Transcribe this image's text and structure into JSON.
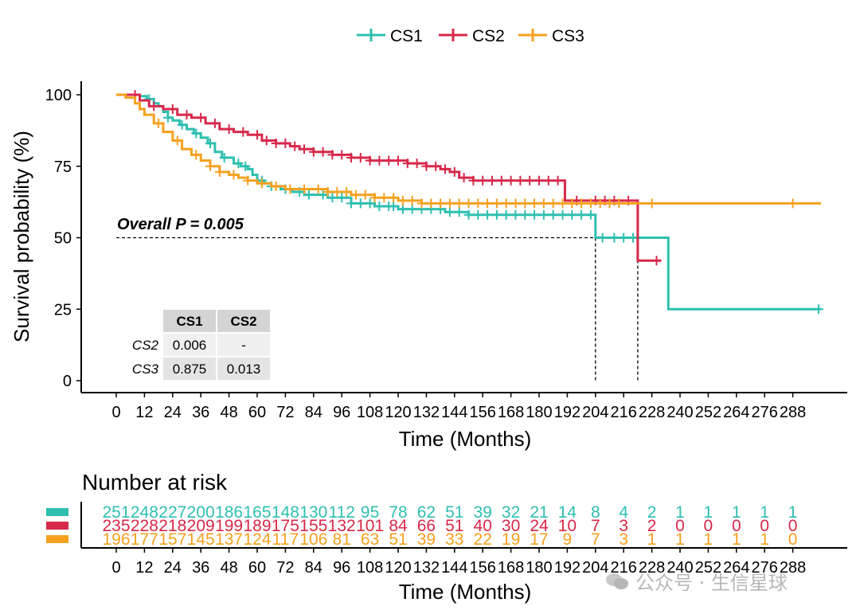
{
  "legend": [
    {
      "label": "CS1",
      "color": "#2EBFB0"
    },
    {
      "label": "CS2",
      "color": "#D6294A"
    },
    {
      "label": "CS3",
      "color": "#F5A11F"
    }
  ],
  "chart_data": {
    "type": "line",
    "subtype": "kaplan-meier",
    "xlabel": "Time (Months)",
    "ylabel": "Survival probability (%)",
    "xlim": [
      0,
      300
    ],
    "ylim": [
      0,
      100
    ],
    "xticks": [
      0,
      12,
      24,
      36,
      48,
      60,
      72,
      84,
      96,
      108,
      120,
      132,
      144,
      156,
      168,
      180,
      192,
      204,
      216,
      228,
      240,
      252,
      264,
      276,
      288
    ],
    "yticks": [
      0,
      25,
      50,
      75,
      100
    ],
    "legend_position": "top",
    "annotation": "Overall P = 0.005",
    "median_survival": [
      204,
      222
    ],
    "series": [
      {
        "name": "CS1",
        "color": "#2EBFB0",
        "points": [
          [
            0,
            100
          ],
          [
            6,
            100
          ],
          [
            10,
            99.5
          ],
          [
            13,
            98.5
          ],
          [
            16,
            97
          ],
          [
            18,
            96
          ],
          [
            20,
            94
          ],
          [
            22,
            92
          ],
          [
            24,
            91
          ],
          [
            27,
            89.5
          ],
          [
            30,
            88
          ],
          [
            33,
            86.5
          ],
          [
            36,
            85
          ],
          [
            39,
            83
          ],
          [
            42,
            80
          ],
          [
            45,
            78
          ],
          [
            50,
            76
          ],
          [
            53,
            75
          ],
          [
            56,
            74
          ],
          [
            58,
            72
          ],
          [
            60,
            70
          ],
          [
            63,
            69
          ],
          [
            66,
            68
          ],
          [
            70,
            67
          ],
          [
            75,
            66
          ],
          [
            80,
            65
          ],
          [
            90,
            64
          ],
          [
            100,
            62
          ],
          [
            110,
            61
          ],
          [
            120,
            60
          ],
          [
            140,
            59
          ],
          [
            150,
            58
          ],
          [
            170,
            58
          ],
          [
            204,
            58
          ],
          [
            204,
            50
          ],
          [
            235,
            50
          ],
          [
            235,
            25
          ],
          [
            300,
            25
          ]
        ],
        "censors": [
          14,
          22,
          28,
          34,
          40,
          46,
          52,
          55,
          62,
          66,
          72,
          78,
          82,
          88,
          92,
          96,
          100,
          104,
          108,
          112,
          116,
          118,
          122,
          126,
          130,
          134,
          138,
          142,
          146,
          150,
          154,
          158,
          162,
          166,
          170,
          174,
          178,
          182,
          186,
          190,
          194,
          198,
          202,
          207,
          212,
          216,
          220,
          299
        ]
      },
      {
        "name": "CS2",
        "color": "#D6294A",
        "points": [
          [
            0,
            100
          ],
          [
            6,
            100
          ],
          [
            10,
            98
          ],
          [
            14,
            96
          ],
          [
            20,
            95
          ],
          [
            26,
            93
          ],
          [
            32,
            92
          ],
          [
            38,
            90
          ],
          [
            44,
            88
          ],
          [
            50,
            87
          ],
          [
            56,
            86
          ],
          [
            62,
            84
          ],
          [
            68,
            83
          ],
          [
            74,
            82
          ],
          [
            78,
            81
          ],
          [
            84,
            80
          ],
          [
            92,
            79
          ],
          [
            100,
            78
          ],
          [
            108,
            77
          ],
          [
            116,
            77
          ],
          [
            124,
            76
          ],
          [
            132,
            75
          ],
          [
            138,
            74
          ],
          [
            142,
            73
          ],
          [
            146,
            71
          ],
          [
            152,
            70
          ],
          [
            160,
            70
          ],
          [
            170,
            70
          ],
          [
            180,
            70
          ],
          [
            191,
            70
          ],
          [
            191,
            63
          ],
          [
            200,
            63
          ],
          [
            222,
            63
          ],
          [
            222,
            42
          ],
          [
            232,
            42
          ]
        ],
        "censors": [
          8,
          16,
          24,
          30,
          36,
          42,
          48,
          54,
          60,
          64,
          68,
          72,
          76,
          80,
          84,
          88,
          92,
          96,
          100,
          104,
          108,
          112,
          116,
          120,
          124,
          128,
          132,
          136,
          140,
          144,
          148,
          152,
          156,
          160,
          164,
          168,
          172,
          176,
          180,
          184,
          188,
          196,
          204,
          208,
          212,
          218,
          230
        ]
      },
      {
        "name": "CS3",
        "color": "#F5A11F",
        "points": [
          [
            0,
            100
          ],
          [
            4,
            99
          ],
          [
            8,
            97
          ],
          [
            10,
            95
          ],
          [
            12,
            93
          ],
          [
            16,
            90
          ],
          [
            20,
            87
          ],
          [
            24,
            84
          ],
          [
            28,
            81
          ],
          [
            32,
            79
          ],
          [
            36,
            77
          ],
          [
            40,
            75
          ],
          [
            44,
            73
          ],
          [
            48,
            72
          ],
          [
            52,
            71
          ],
          [
            56,
            70
          ],
          [
            60,
            69
          ],
          [
            66,
            68
          ],
          [
            72,
            67
          ],
          [
            80,
            67
          ],
          [
            90,
            66
          ],
          [
            100,
            65
          ],
          [
            110,
            64
          ],
          [
            120,
            63
          ],
          [
            130,
            62
          ],
          [
            140,
            62
          ],
          [
            160,
            62
          ],
          [
            300,
            62
          ]
        ],
        "censors": [
          18,
          26,
          34,
          40,
          44,
          50,
          56,
          62,
          68,
          74,
          80,
          86,
          90,
          94,
          98,
          102,
          106,
          110,
          114,
          118,
          122,
          126,
          130,
          134,
          138,
          142,
          146,
          150,
          154,
          158,
          162,
          166,
          170,
          174,
          178,
          182,
          186,
          190,
          194,
          198,
          202,
          206,
          210,
          214,
          228,
          288
        ]
      }
    ],
    "pairwise_table": {
      "columns": [
        "CS1",
        "CS2"
      ],
      "rows": [
        {
          "label": "CS2",
          "values": [
            "0.006",
            "-"
          ]
        },
        {
          "label": "CS3",
          "values": [
            "0.875",
            "0.013"
          ]
        }
      ]
    }
  },
  "risk_table": {
    "title": "Number at risk",
    "xlabel": "Time (Months)",
    "times": [
      0,
      12,
      24,
      36,
      48,
      60,
      72,
      84,
      96,
      108,
      120,
      132,
      144,
      156,
      168,
      180,
      192,
      204,
      216,
      228,
      240,
      252,
      264,
      276,
      288
    ],
    "rows": [
      {
        "name": "CS1",
        "color": "#2EBFB0",
        "values": [
          "251",
          "248",
          "227",
          "200",
          "186",
          "165",
          "148",
          "130",
          "112",
          "95",
          "78",
          "62",
          "51",
          "39",
          "32",
          "21",
          "14",
          "8",
          "4",
          "2",
          "1",
          "1",
          "1",
          "1",
          "1"
        ]
      },
      {
        "name": "CS2",
        "color": "#D6294A",
        "values": [
          "235",
          "228",
          "218",
          "209",
          "199",
          "189",
          "175",
          "155",
          "132",
          "101",
          "84",
          "66",
          "51",
          "40",
          "30",
          "24",
          "10",
          "7",
          "3",
          "2",
          "0",
          "0",
          "0",
          "0",
          "0"
        ]
      },
      {
        "name": "CS3",
        "color": "#F5A11F",
        "values": [
          "196",
          "177",
          "157",
          "145",
          "137",
          "124",
          "117",
          "106",
          "81",
          "63",
          "51",
          "39",
          "33",
          "22",
          "19",
          "17",
          "9",
          "7",
          "3",
          "1",
          "1",
          "1",
          "1",
          "1",
          "0"
        ]
      }
    ]
  },
  "watermark": "公众号 · 生信星球"
}
